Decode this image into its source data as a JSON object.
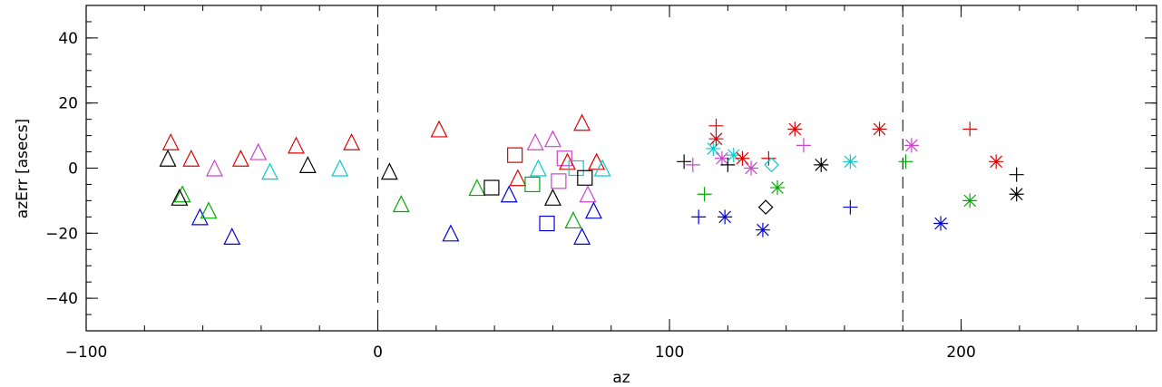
{
  "chart_data": {
    "type": "scatter",
    "xlabel": "az",
    "ylabel": "azErr [asecs]",
    "xlim": [
      -100,
      267
    ],
    "ylim": [
      -50,
      50
    ],
    "x_ticks": [
      -100,
      0,
      100,
      200
    ],
    "x_tick_labels": [
      "−100",
      "0",
      "100",
      "200"
    ],
    "y_ticks": [
      -40,
      -20,
      0,
      20,
      40
    ],
    "y_tick_labels": [
      "−40",
      "−20",
      "0",
      "20",
      "40"
    ],
    "x_minor_step": 20,
    "y_minor_step": 5,
    "grid": false,
    "legend": "none",
    "reference_lines": [
      0,
      180
    ],
    "points": [
      {
        "x": -71,
        "y": 8,
        "marker": "triangle",
        "color": "#dd0000"
      },
      {
        "x": -64,
        "y": 3,
        "marker": "triangle",
        "color": "#dd0000"
      },
      {
        "x": -56,
        "y": 0,
        "marker": "triangle",
        "color": "#cc44cc"
      },
      {
        "x": -47,
        "y": 3,
        "marker": "triangle",
        "color": "#dd0000"
      },
      {
        "x": -41,
        "y": 5,
        "marker": "triangle",
        "color": "#cc44cc"
      },
      {
        "x": -37,
        "y": -1,
        "marker": "triangle",
        "color": "#00cccc"
      },
      {
        "x": -28,
        "y": 7,
        "marker": "triangle",
        "color": "#dd0000"
      },
      {
        "x": -24,
        "y": 1,
        "marker": "triangle",
        "color": "#000000"
      },
      {
        "x": -13,
        "y": 0,
        "marker": "triangle",
        "color": "#00cccc"
      },
      {
        "x": -9,
        "y": 8,
        "marker": "triangle",
        "color": "#dd0000"
      },
      {
        "x": -72,
        "y": 3,
        "marker": "triangle",
        "color": "#000000"
      },
      {
        "x": -67,
        "y": -8,
        "marker": "triangle",
        "color": "#00aa00"
      },
      {
        "x": -68,
        "y": -9,
        "marker": "triangle",
        "color": "#000000"
      },
      {
        "x": -61,
        "y": -15,
        "marker": "triangle",
        "color": "#0000dd"
      },
      {
        "x": -58,
        "y": -13,
        "marker": "triangle",
        "color": "#00aa00"
      },
      {
        "x": -50,
        "y": -21,
        "marker": "triangle",
        "color": "#0000dd"
      },
      {
        "x": 4,
        "y": -1,
        "marker": "triangle",
        "color": "#000000"
      },
      {
        "x": 8,
        "y": -11,
        "marker": "triangle",
        "color": "#00aa00"
      },
      {
        "x": 21,
        "y": 12,
        "marker": "triangle",
        "color": "#dd0000"
      },
      {
        "x": 25,
        "y": -20,
        "marker": "triangle",
        "color": "#0000dd"
      },
      {
        "x": 34,
        "y": -6,
        "marker": "triangle",
        "color": "#00aa00"
      },
      {
        "x": 39,
        "y": -6,
        "marker": "square",
        "color": "#000000"
      },
      {
        "x": 45,
        "y": -8,
        "marker": "triangle",
        "color": "#0000dd"
      },
      {
        "x": 47,
        "y": 4,
        "marker": "square",
        "color": "#dd0000"
      },
      {
        "x": 48,
        "y": -3,
        "marker": "triangle",
        "color": "#dd0000"
      },
      {
        "x": 53,
        "y": -5,
        "marker": "square",
        "color": "#00aa00"
      },
      {
        "x": 54,
        "y": 8,
        "marker": "triangle",
        "color": "#cc44cc"
      },
      {
        "x": 55,
        "y": 0,
        "marker": "triangle",
        "color": "#00cccc"
      },
      {
        "x": 58,
        "y": -17,
        "marker": "square",
        "color": "#0000dd"
      },
      {
        "x": 60,
        "y": 9,
        "marker": "triangle",
        "color": "#cc44cc"
      },
      {
        "x": 60,
        "y": -9,
        "marker": "triangle",
        "color": "#000000"
      },
      {
        "x": 62,
        "y": -4,
        "marker": "square",
        "color": "#cc44cc"
      },
      {
        "x": 64,
        "y": 3,
        "marker": "square",
        "color": "#cc44cc"
      },
      {
        "x": 65,
        "y": 2,
        "marker": "triangle",
        "color": "#dd0000"
      },
      {
        "x": 67,
        "y": -16,
        "marker": "triangle",
        "color": "#00aa00"
      },
      {
        "x": 68,
        "y": 0,
        "marker": "square",
        "color": "#00cccc"
      },
      {
        "x": 70,
        "y": 14,
        "marker": "triangle",
        "color": "#dd0000"
      },
      {
        "x": 70,
        "y": -21,
        "marker": "triangle",
        "color": "#0000dd"
      },
      {
        "x": 71,
        "y": -3,
        "marker": "square",
        "color": "#000000"
      },
      {
        "x": 72,
        "y": -8,
        "marker": "triangle",
        "color": "#cc44cc"
      },
      {
        "x": 74,
        "y": -13,
        "marker": "triangle",
        "color": "#0000dd"
      },
      {
        "x": 75,
        "y": 2,
        "marker": "triangle",
        "color": "#dd0000"
      },
      {
        "x": 77,
        "y": 0,
        "marker": "triangle",
        "color": "#00cccc"
      },
      {
        "x": 105,
        "y": 2,
        "marker": "plus",
        "color": "#000000"
      },
      {
        "x": 108,
        "y": 1,
        "marker": "plus",
        "color": "#cc44cc"
      },
      {
        "x": 110,
        "y": -15,
        "marker": "plus",
        "color": "#0000dd"
      },
      {
        "x": 112,
        "y": -8,
        "marker": "plus",
        "color": "#00aa00"
      },
      {
        "x": 115,
        "y": 6,
        "marker": "asterisk",
        "color": "#00cccc"
      },
      {
        "x": 116,
        "y": 13,
        "marker": "plus",
        "color": "#dd0000"
      },
      {
        "x": 116,
        "y": 9,
        "marker": "asterisk",
        "color": "#dd0000"
      },
      {
        "x": 118,
        "y": 3,
        "marker": "asterisk",
        "color": "#cc44cc"
      },
      {
        "x": 119,
        "y": -15,
        "marker": "asterisk",
        "color": "#0000dd"
      },
      {
        "x": 120,
        "y": 1,
        "marker": "plus",
        "color": "#000000"
      },
      {
        "x": 122,
        "y": 4,
        "marker": "asterisk",
        "color": "#00cccc"
      },
      {
        "x": 125,
        "y": 3,
        "marker": "asterisk",
        "color": "#dd0000"
      },
      {
        "x": 128,
        "y": 0,
        "marker": "asterisk",
        "color": "#cc44cc"
      },
      {
        "x": 132,
        "y": -19,
        "marker": "asterisk",
        "color": "#0000dd"
      },
      {
        "x": 133,
        "y": -12,
        "marker": "diamond",
        "color": "#000000"
      },
      {
        "x": 134,
        "y": 3,
        "marker": "plus",
        "color": "#dd0000"
      },
      {
        "x": 135,
        "y": 1,
        "marker": "diamond",
        "color": "#00cccc"
      },
      {
        "x": 137,
        "y": -6,
        "marker": "asterisk",
        "color": "#00aa00"
      },
      {
        "x": 143,
        "y": 12,
        "marker": "asterisk",
        "color": "#dd0000"
      },
      {
        "x": 146,
        "y": 7,
        "marker": "plus",
        "color": "#cc44cc"
      },
      {
        "x": 152,
        "y": 1,
        "marker": "asterisk",
        "color": "#000000"
      },
      {
        "x": 162,
        "y": 2,
        "marker": "asterisk",
        "color": "#00cccc"
      },
      {
        "x": 162,
        "y": -12,
        "marker": "plus",
        "color": "#0000dd"
      },
      {
        "x": 172,
        "y": 12,
        "marker": "asterisk",
        "color": "#dd0000"
      },
      {
        "x": 181,
        "y": 2,
        "marker": "plus",
        "color": "#00aa00"
      },
      {
        "x": 183,
        "y": 7,
        "marker": "asterisk",
        "color": "#cc44cc"
      },
      {
        "x": 193,
        "y": -17,
        "marker": "asterisk",
        "color": "#0000dd"
      },
      {
        "x": 203,
        "y": 12,
        "marker": "plus",
        "color": "#dd0000"
      },
      {
        "x": 203,
        "y": -10,
        "marker": "asterisk",
        "color": "#00aa00"
      },
      {
        "x": 212,
        "y": 2,
        "marker": "asterisk",
        "color": "#dd0000"
      },
      {
        "x": 219,
        "y": -2,
        "marker": "plus",
        "color": "#000000"
      },
      {
        "x": 219,
        "y": -8,
        "marker": "asterisk",
        "color": "#000000"
      }
    ]
  }
}
